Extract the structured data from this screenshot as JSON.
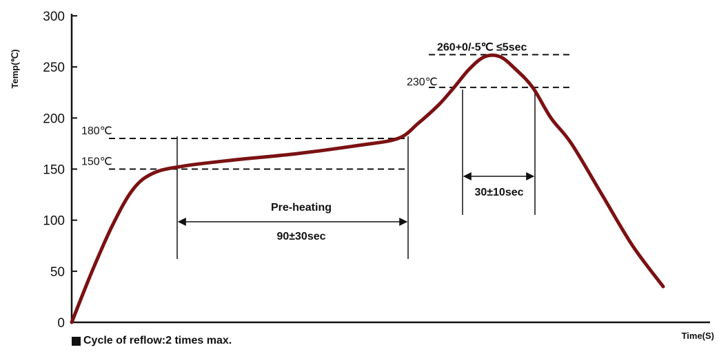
{
  "chart_data": {
    "type": "line",
    "title": "",
    "xlabel": "Time(S)",
    "ylabel": "Temp(℃)",
    "ylim": [
      0,
      300
    ],
    "yticks": [
      "0",
      "50",
      "100",
      "150",
      "200",
      "250",
      "300"
    ],
    "grid": false,
    "series": [
      {
        "color": "#7b1113",
        "points": [
          {
            "t": 0,
            "temp": 0
          },
          {
            "t": 20,
            "temp": 50
          },
          {
            "t": 40,
            "temp": 95
          },
          {
            "t": 60,
            "temp": 130
          },
          {
            "t": 80,
            "temp": 146
          },
          {
            "t": 110,
            "temp": 153
          },
          {
            "t": 160,
            "temp": 159
          },
          {
            "t": 220,
            "temp": 165
          },
          {
            "t": 280,
            "temp": 173
          },
          {
            "t": 320,
            "temp": 180
          },
          {
            "t": 340,
            "temp": 195
          },
          {
            "t": 360,
            "temp": 213
          },
          {
            "t": 375,
            "temp": 230
          },
          {
            "t": 390,
            "temp": 248
          },
          {
            "t": 405,
            "temp": 260
          },
          {
            "t": 420,
            "temp": 260
          },
          {
            "t": 435,
            "temp": 248
          },
          {
            "t": 452,
            "temp": 230
          },
          {
            "t": 470,
            "temp": 200
          },
          {
            "t": 490,
            "temp": 175
          },
          {
            "t": 520,
            "temp": 125
          },
          {
            "t": 550,
            "temp": 75
          },
          {
            "t": 580,
            "temp": 35
          }
        ]
      }
    ],
    "reference_lines": [
      {
        "temp": 150,
        "label": "150℃"
      },
      {
        "temp": 180,
        "label": "180℃"
      },
      {
        "temp": 230,
        "label": "230℃"
      },
      {
        "temp": 262,
        "label": "260+0/-5℃ ≤5sec"
      }
    ],
    "annotations": {
      "preheat_name": "Pre-heating",
      "preheat_duration": "90±30sec",
      "reflow_duration": "30±10sec"
    },
    "footnote": "Cycle of reflow:2 times max."
  }
}
